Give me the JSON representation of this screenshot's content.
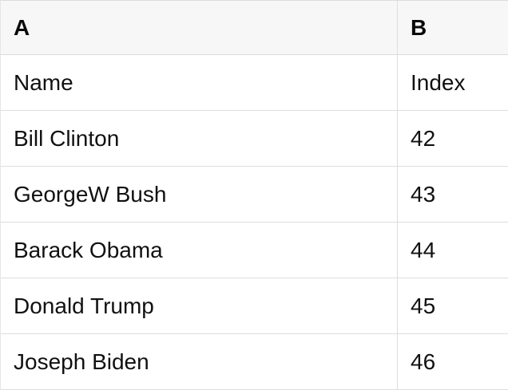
{
  "table": {
    "columns": [
      {
        "label": "A"
      },
      {
        "label": "B"
      }
    ],
    "rows": [
      {
        "a": "Name",
        "b": "Index"
      },
      {
        "a": "Bill Clinton",
        "b": "42"
      },
      {
        "a": "GeorgeW Bush",
        "b": "43"
      },
      {
        "a": "Barack Obama",
        "b": "44"
      },
      {
        "a": "Donald Trump",
        "b": "45"
      },
      {
        "a": "Joseph Biden",
        "b": "46"
      }
    ],
    "colors": {
      "header_bg": "#f7f7f7",
      "border": "#dedede",
      "text": "#111111"
    }
  }
}
